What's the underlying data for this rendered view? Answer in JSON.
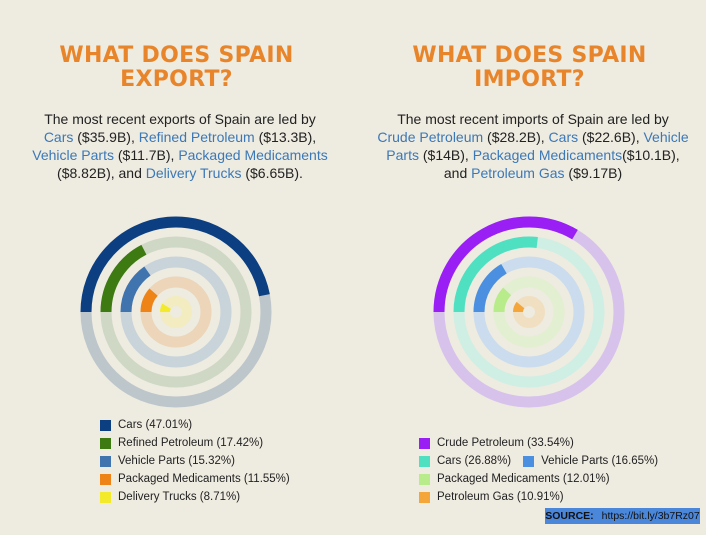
{
  "export_panel": {
    "title_line1": "WHAT DOES SPAIN",
    "title_line2": "EXPORT?",
    "desc": {
      "intro": "The most recent exports of Spain are led by",
      "items": [
        {
          "name": "Cars",
          "value": " ($35.9B), "
        },
        {
          "name": "Refined Petroleum",
          "value": " ($13.3B),"
        },
        {
          "name": "Vehicle Parts",
          "value": " ($11.7B), "
        },
        {
          "name": "Packaged Medicaments",
          "value": ""
        },
        {
          "name": "Delivery Trucks",
          "value": " ($6.65B)."
        }
      ],
      "pre_medic_value": "($8.82B), and "
    }
  },
  "import_panel": {
    "title_line1": "WHAT DOES SPAIN",
    "title_line2": "IMPORT?",
    "desc": {
      "intro": "The most recent imports of Spain are led by",
      "items": [
        {
          "name": "Crude Petroleum",
          "value": " ($28.2B), "
        },
        {
          "name": "Cars",
          "value": " ($22.6B), "
        },
        {
          "name": "Vehicle",
          "value": ""
        },
        {
          "name": "Parts",
          "value": " ($14B), "
        },
        {
          "name": "Packaged Medicaments",
          "value": "($10.1B),"
        },
        {
          "name": "Petroleum Gas",
          "value": " ($9.17B)"
        }
      ],
      "and_text": "and "
    }
  },
  "source": {
    "label": "SOURCE:",
    "url": "https://bit.ly/3b7Rz07"
  },
  "chart_data": [
    {
      "type": "radial-bar",
      "categories": [
        "Cars",
        "Refined Petroleum",
        "Vehicle Parts",
        "Packaged Medicaments",
        "Delivery Trucks"
      ],
      "values": [
        47.01,
        17.42,
        15.32,
        11.55,
        8.71
      ],
      "legend_labels": [
        "Cars (47.01%)",
        "Refined Petroleum (17.42%)",
        "Vehicle Parts (15.32%)",
        "Packaged Medicaments (11.55%)",
        "Delivery Trucks (8.71%)"
      ],
      "colors": [
        "#0b3f82",
        "#3d7a12",
        "#3f74ae",
        "#ee8417",
        "#f3ea2c"
      ],
      "track_colors": [
        "#bdc6cb",
        "#cfd8c4",
        "#c8d3da",
        "#ecd5b8",
        "#f2ecc0"
      ],
      "legend": "bottom"
    },
    {
      "type": "radial-bar",
      "categories": [
        "Crude Petroleum",
        "Cars",
        "Vehicle Parts",
        "Packaged Medicaments",
        "Petroleum Gas"
      ],
      "values": [
        33.54,
        26.88,
        16.65,
        12.01,
        10.91
      ],
      "legend_labels": [
        "Crude Petroleum (33.54%)",
        "Cars (26.88%)",
        "Vehicle Parts (16.65%)",
        "Packaged Medicaments (12.01%)",
        "Petroleum Gas (10.91%)"
      ],
      "colors": [
        "#9a1ff5",
        "#4fe0c1",
        "#4a8fe0",
        "#b8eb8a",
        "#f4a63b"
      ],
      "track_colors": [
        "#d7c2ec",
        "#cfeee4",
        "#cadced",
        "#e2efd0",
        "#f1dfc2"
      ],
      "legend": "bottom"
    }
  ]
}
